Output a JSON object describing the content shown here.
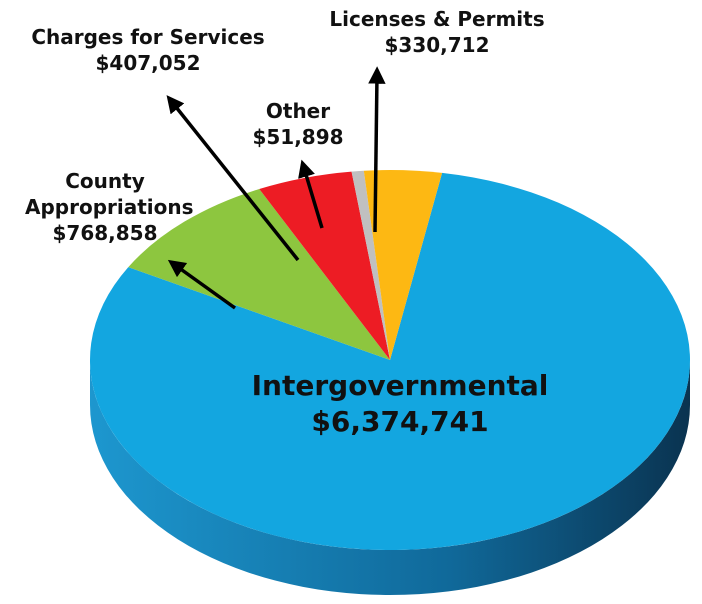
{
  "chart_data": {
    "type": "pie",
    "categories": [
      "Intergovernmental",
      "County Appropriations",
      "Charges for Services",
      "Other",
      "Licenses & Permits"
    ],
    "values": [
      6374741,
      768858,
      407052,
      51898,
      330712
    ],
    "value_labels": [
      "$6,374,741",
      "$768,858",
      "$407,052",
      "$51,898",
      "$330,712"
    ],
    "colors": [
      "#13a6e0",
      "#8dc63f",
      "#ed1c24",
      "#c0c0c0",
      "#fdb813"
    ]
  }
}
